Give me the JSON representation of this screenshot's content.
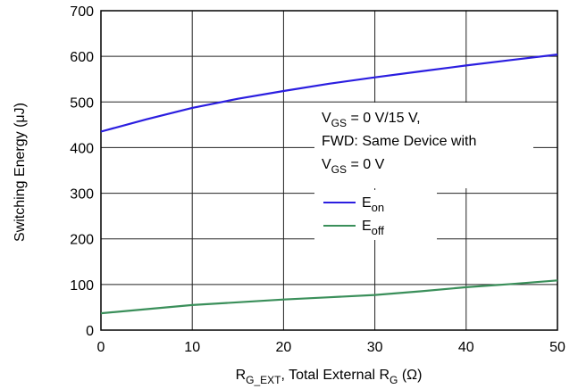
{
  "chart_data": {
    "type": "line",
    "title": "",
    "xlabel": {
      "main": "R",
      "sub": "G_EXT",
      "mid": ", Total External R",
      "sub2": "G",
      "tail": " (Ω)"
    },
    "ylabel": "Switching Energy (μJ)",
    "xlim": [
      0,
      50
    ],
    "ylim": [
      0,
      700
    ],
    "x_ticks": [
      "0",
      "10",
      "20",
      "30",
      "40",
      "50"
    ],
    "y_ticks": [
      "0",
      "100",
      "200",
      "300",
      "400",
      "500",
      "600",
      "700"
    ],
    "x_tick_values": [
      0,
      10,
      20,
      30,
      40,
      50
    ],
    "y_tick_values": [
      0,
      100,
      200,
      300,
      400,
      500,
      600,
      700
    ],
    "grid": true,
    "legend_position": "center-right",
    "annotation": {
      "line1_main": "V",
      "line1_sub": "GS",
      "line1_tail": " = 0 V/15 V,",
      "line2": "FWD: Same Device with",
      "line3_main": "V",
      "line3_sub": "GS",
      "line3_tail": " = 0 V"
    },
    "series": [
      {
        "name": "E",
        "name_sub": "on",
        "color": "#2b1ee0",
        "x": [
          0,
          5,
          10,
          15,
          20,
          25,
          30,
          35,
          40,
          45,
          50
        ],
        "y": [
          435,
          462,
          487,
          507,
          524,
          540,
          554,
          567,
          580,
          592,
          604
        ]
      },
      {
        "name": "E",
        "name_sub": "off",
        "color": "#3a8f5a",
        "x": [
          0,
          5,
          10,
          15,
          20,
          25,
          30,
          35,
          40,
          45,
          50
        ],
        "y": [
          37,
          46,
          55,
          61,
          67,
          72,
          77,
          85,
          94,
          101,
          109
        ]
      }
    ]
  }
}
